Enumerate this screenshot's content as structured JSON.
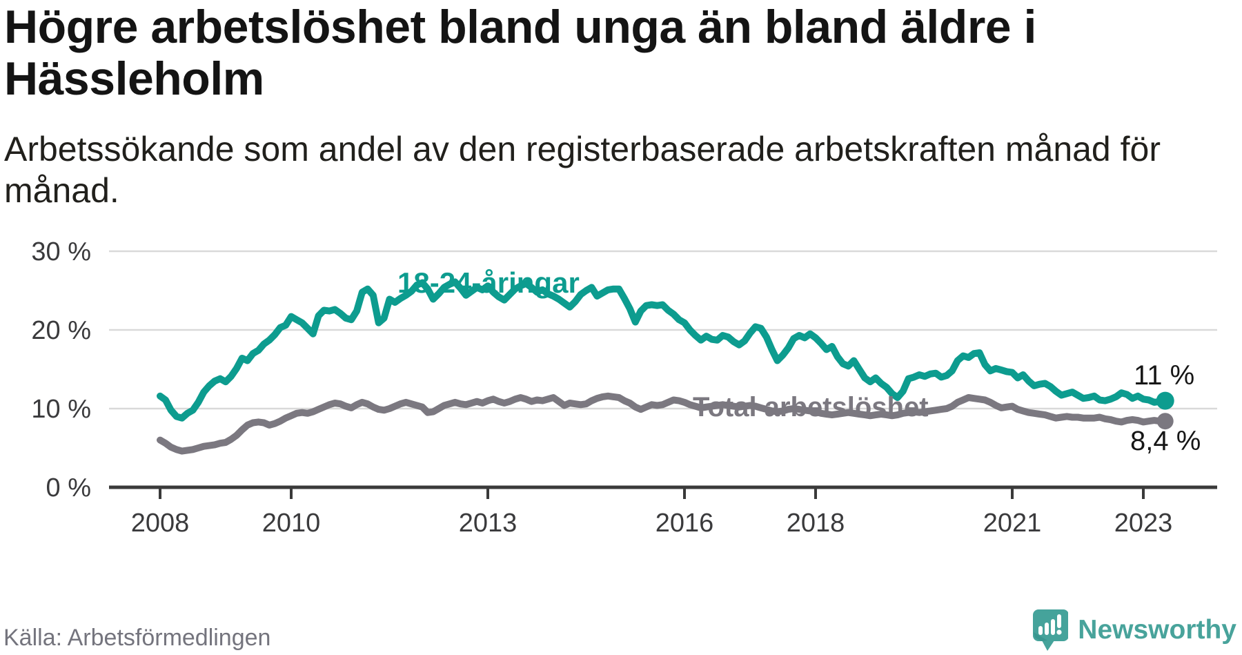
{
  "header": {
    "title_line1": "Högre arbetslöshet bland unga än bland äldre i",
    "title_line2": "Hässleholm",
    "subtitle_line1": "Arbetssökande som andel av den registerbaserade arbetskraften månad för",
    "subtitle_line2": "månad."
  },
  "footer": {
    "source": "Källa: Arbetsförmedlingen",
    "brand": "Newsworthy"
  },
  "colors": {
    "accent_teal": "#0d9c8f",
    "line_gray": "#7b7880",
    "grid": "#d9d9d9",
    "axis": "#3a3a3a",
    "value_label": "#161616",
    "logo_teal": "#45a39b",
    "logo_text": "#48a39b"
  },
  "chart_data": {
    "type": "line",
    "title": "Högre arbetslöshet bland unga än bland äldre i Hässleholm",
    "subtitle": "Arbetssökande som andel av den registerbaserade arbetskraften månad för månad.",
    "xlabel": "",
    "ylabel": "",
    "y_ticks": [
      0,
      10,
      20,
      30
    ],
    "y_suffix": " %",
    "ylim": [
      0,
      32
    ],
    "x_ticks": [
      2008,
      2010,
      2013,
      2016,
      2018,
      2021,
      2023
    ],
    "xlim": [
      2007.2,
      2023.9
    ],
    "grid": "horizontal",
    "legend": "inline-labels",
    "series": [
      {
        "name": "18-24-åringar",
        "color": "#0d9c8f",
        "end_label": "11 %",
        "end_value": 11.0,
        "start_year": 2008,
        "frequency": "monthly",
        "values": [
          11.6,
          11.1,
          9.8,
          9.0,
          8.8,
          9.4,
          9.8,
          10.8,
          12.1,
          12.9,
          13.5,
          13.8,
          13.4,
          14.1,
          15.1,
          16.4,
          16.1,
          17.0,
          17.4,
          18.2,
          18.7,
          19.4,
          20.3,
          20.6,
          21.7,
          21.3,
          20.9,
          20.2,
          19.5,
          21.8,
          22.5,
          22.4,
          22.6,
          22.1,
          21.5,
          21.3,
          22.4,
          24.8,
          25.2,
          24.4,
          20.9,
          21.5,
          23.9,
          23.5,
          24.0,
          24.4,
          24.9,
          25.7,
          26.0,
          25.2,
          23.9,
          24.6,
          25.4,
          25.8,
          26.1,
          25.3,
          24.4,
          24.9,
          25.4,
          25.1,
          25.6,
          24.8,
          24.2,
          23.8,
          24.5,
          25.2,
          25.6,
          25.9,
          25.4,
          24.8,
          25.1,
          24.6,
          24.3,
          23.9,
          23.4,
          22.9,
          23.6,
          24.5,
          25.0,
          25.4,
          24.3,
          24.7,
          25.1,
          25.2,
          25.2,
          24.0,
          22.7,
          21.0,
          22.4,
          23.1,
          23.2,
          23.1,
          23.2,
          22.5,
          22.0,
          21.3,
          20.9,
          20.0,
          19.3,
          18.7,
          19.2,
          18.8,
          18.7,
          19.3,
          19.1,
          18.5,
          18.1,
          18.6,
          19.6,
          20.4,
          20.2,
          19.1,
          17.5,
          16.1,
          16.8,
          17.7,
          18.9,
          19.3,
          19.0,
          19.5,
          19.0,
          18.3,
          17.5,
          17.9,
          16.6,
          15.7,
          15.4,
          16.1,
          15.0,
          13.9,
          13.4,
          13.9,
          13.2,
          12.7,
          11.9,
          11.4,
          12.2,
          13.8,
          14.0,
          14.3,
          14.1,
          14.4,
          14.5,
          14.0,
          14.2,
          14.8,
          16.1,
          16.7,
          16.5,
          17.0,
          17.1,
          15.6,
          14.8,
          15.1,
          14.9,
          14.7,
          14.6,
          13.9,
          14.3,
          13.5,
          12.9,
          13.1,
          13.2,
          12.8,
          12.2,
          11.7,
          11.9,
          12.1,
          11.7,
          11.3,
          11.4,
          11.6,
          11.1,
          11.0,
          11.2,
          11.5,
          12.0,
          11.8,
          11.3,
          11.6,
          11.2,
          11.1,
          10.8,
          10.9,
          11.0
        ]
      },
      {
        "name": "Total arbetslöshet",
        "color": "#7b7880",
        "end_label": "8,4 %",
        "end_value": 8.4,
        "start_year": 2008,
        "frequency": "monthly",
        "values": [
          6.0,
          5.6,
          5.1,
          4.8,
          4.6,
          4.7,
          4.8,
          5.0,
          5.2,
          5.3,
          5.4,
          5.6,
          5.7,
          6.1,
          6.6,
          7.3,
          7.9,
          8.2,
          8.3,
          8.2,
          7.9,
          8.1,
          8.4,
          8.8,
          9.1,
          9.4,
          9.5,
          9.4,
          9.6,
          9.9,
          10.2,
          10.5,
          10.7,
          10.6,
          10.3,
          10.1,
          10.5,
          10.8,
          10.6,
          10.2,
          9.9,
          9.8,
          10.0,
          10.3,
          10.6,
          10.8,
          10.6,
          10.4,
          10.2,
          9.5,
          9.6,
          10.0,
          10.4,
          10.6,
          10.8,
          10.6,
          10.5,
          10.7,
          10.9,
          10.7,
          11.0,
          11.2,
          10.9,
          10.7,
          10.9,
          11.2,
          11.4,
          11.2,
          10.9,
          11.1,
          11.0,
          11.2,
          11.4,
          10.9,
          10.4,
          10.7,
          10.6,
          10.5,
          10.6,
          11.0,
          11.3,
          11.5,
          11.6,
          11.5,
          11.4,
          11.0,
          10.7,
          10.2,
          9.9,
          10.2,
          10.5,
          10.4,
          10.5,
          10.8,
          11.1,
          11.0,
          10.8,
          10.5,
          10.3,
          10.1,
          10.2,
          10.3,
          10.4,
          10.5,
          10.4,
          10.3,
          10.2,
          10.3,
          10.4,
          10.3,
          10.1,
          9.9,
          9.7,
          9.6,
          9.7,
          9.9,
          10.0,
          9.9,
          9.8,
          9.7,
          9.6,
          9.4,
          9.3,
          9.2,
          9.3,
          9.4,
          9.5,
          9.4,
          9.3,
          9.2,
          9.1,
          9.2,
          9.3,
          9.2,
          9.1,
          9.2,
          9.4,
          9.5,
          9.6,
          9.5,
          9.6,
          9.7,
          9.8,
          9.9,
          10.0,
          10.3,
          10.8,
          11.1,
          11.4,
          11.3,
          11.2,
          11.1,
          10.8,
          10.4,
          10.1,
          10.2,
          10.3,
          9.9,
          9.7,
          9.5,
          9.4,
          9.3,
          9.2,
          9.0,
          8.8,
          8.9,
          9.0,
          8.9,
          8.9,
          8.8,
          8.8,
          8.8,
          8.9,
          8.7,
          8.6,
          8.4,
          8.3,
          8.5,
          8.6,
          8.5,
          8.3,
          8.4,
          8.5,
          8.4,
          8.4
        ]
      }
    ]
  }
}
